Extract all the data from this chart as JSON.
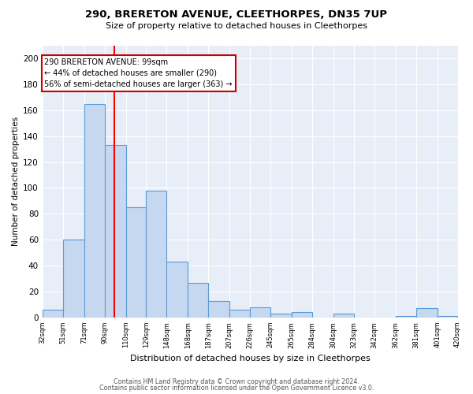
{
  "title": "290, BRERETON AVENUE, CLEETHORPES, DN35 7UP",
  "subtitle": "Size of property relative to detached houses in Cleethorpes",
  "xlabel": "Distribution of detached houses by size in Cleethorpes",
  "ylabel": "Number of detached properties",
  "bar_color": "#c5d8f0",
  "bar_edge_color": "#5b9bd5",
  "bg_color": "#e8eef8",
  "red_line_x": 99,
  "annotation_line1": "290 BRERETON AVENUE: 99sqm",
  "annotation_line2": "← 44% of detached houses are smaller (290)",
  "annotation_line3": "56% of semi-detached houses are larger (363) →",
  "annotation_box_edge": "#cc0000",
  "yticks": [
    0,
    20,
    40,
    60,
    80,
    100,
    120,
    140,
    160,
    180,
    200
  ],
  "ylim": [
    0,
    210
  ],
  "bins": [
    32,
    51,
    71,
    90,
    110,
    129,
    148,
    168,
    187,
    207,
    226,
    245,
    265,
    284,
    304,
    323,
    342,
    362,
    381,
    401,
    420
  ],
  "counts": [
    6,
    60,
    165,
    133,
    85,
    98,
    43,
    27,
    13,
    6,
    8,
    3,
    4,
    0,
    3,
    0,
    0,
    1,
    7,
    1
  ],
  "footer1": "Contains HM Land Registry data © Crown copyright and database right 2024.",
  "footer2": "Contains public sector information licensed under the Open Government Licence v3.0."
}
